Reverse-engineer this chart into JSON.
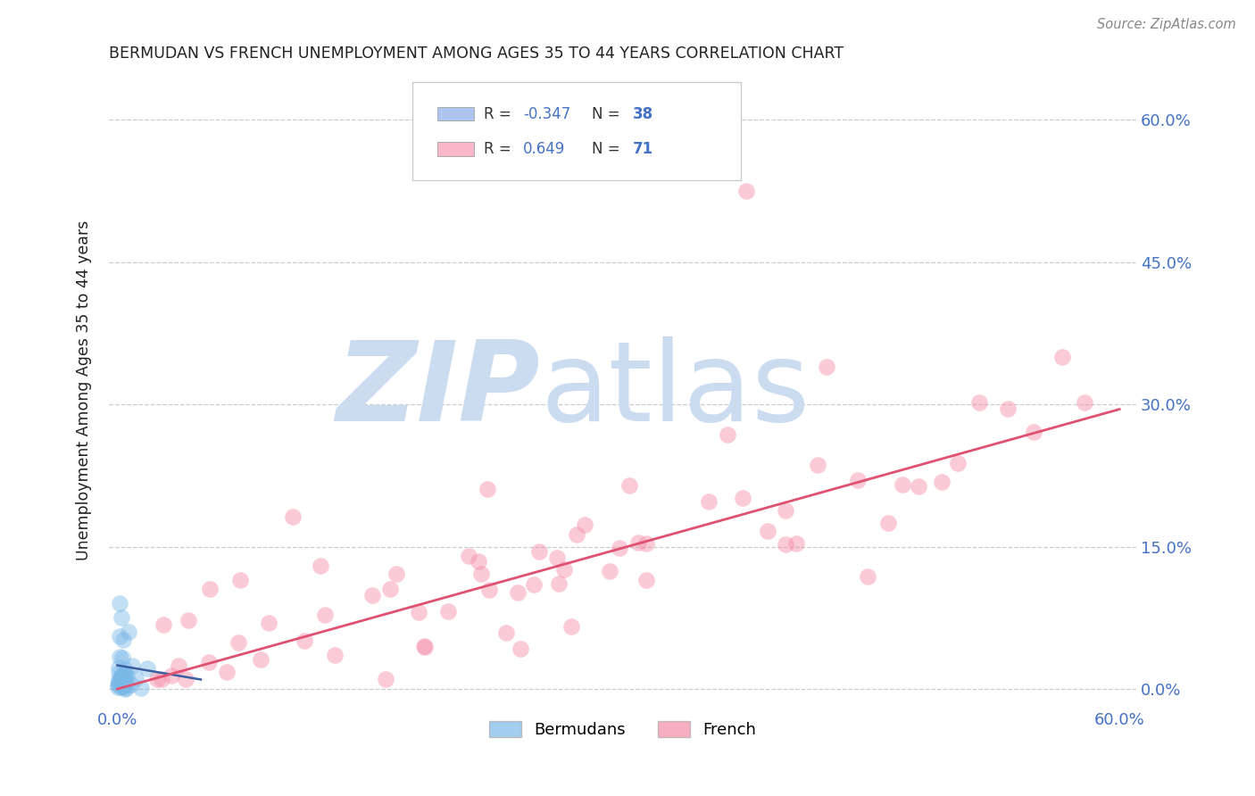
{
  "title": "BERMUDAN VS FRENCH UNEMPLOYMENT AMONG AGES 35 TO 44 YEARS CORRELATION CHART",
  "source": "Source: ZipAtlas.com",
  "ylabel_label": "Unemployment Among Ages 35 to 44 years",
  "xlim": [
    -0.005,
    0.61
  ],
  "ylim": [
    -0.02,
    0.65
  ],
  "yticks": [
    0.0,
    0.15,
    0.3,
    0.45,
    0.6
  ],
  "xticks": [
    0.0,
    0.15,
    0.3,
    0.45,
    0.6
  ],
  "x_tick_labels": [
    "0.0%",
    "15.0%",
    "30.0%",
    "45.0%",
    "60.0%"
  ],
  "y_tick_labels": [
    "0.0%",
    "15.0%",
    "30.0%",
    "45.0%",
    "60.0%"
  ],
  "legend_entries": [
    {
      "label_r": "R = ",
      "label_val": "-0.347",
      "label_n": "  N = ",
      "label_nval": "38",
      "color": "#aec6ef"
    },
    {
      "label_r": "R =  ",
      "label_val": "0.649",
      "label_n": "  N = ",
      "label_nval": "71",
      "color": "#f8b8ca"
    }
  ],
  "legend_labels": [
    "Bermudans",
    "French"
  ],
  "bermuda_color": "#7ab8e8",
  "french_color": "#f48ca7",
  "bermuda_line_color": "#3a5fa0",
  "french_line_color": "#e05070",
  "watermark_zip": "ZIP",
  "watermark_atlas": "atlas",
  "watermark_color": "#ccdcf0",
  "background_color": "#ffffff",
  "grid_color": "#cccccc",
  "title_color": "#222222",
  "axis_label_color": "#222222",
  "tick_color": "#4472c4",
  "source_color": "#888888",
  "bermuda_R": -0.347,
  "bermuda_N": 38,
  "french_R": 0.649,
  "french_N": 71,
  "french_line_x": [
    0.0,
    0.6
  ],
  "french_line_y": [
    0.0,
    0.295
  ],
  "bermuda_line_x": [
    0.0,
    0.05
  ],
  "bermuda_line_y": [
    0.025,
    0.01
  ]
}
